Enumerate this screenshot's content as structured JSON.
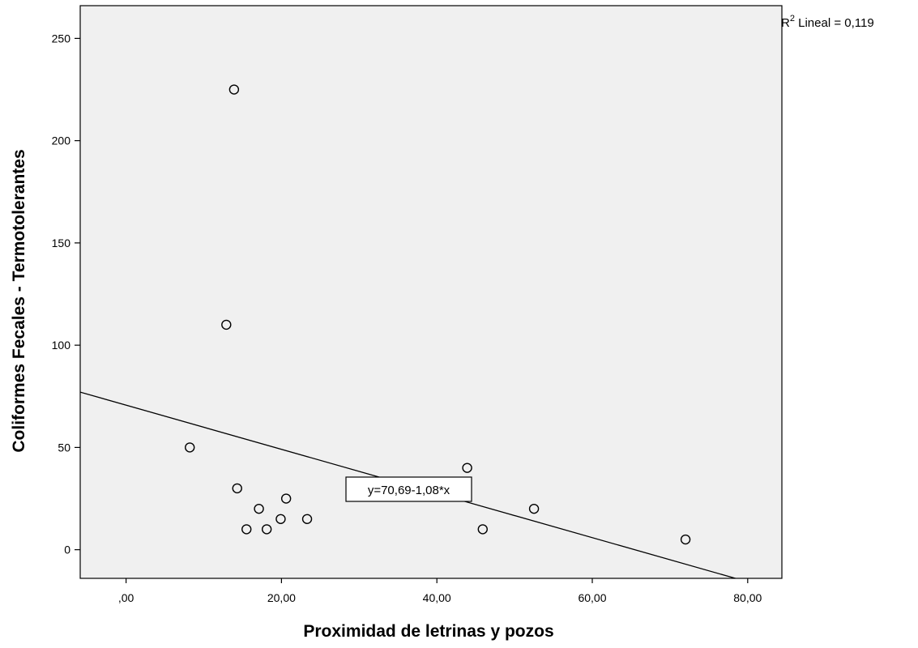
{
  "chart_data": {
    "type": "scatter",
    "title": "",
    "xlabel": "Proximidad de letrinas y pozos",
    "ylabel": "Coliformes Fecales - Termotolerantes",
    "xlim": [
      -5.9,
      84.4
    ],
    "ylim": [
      -14,
      266
    ],
    "x_ticks": [
      0,
      20,
      40,
      60,
      80
    ],
    "x_tick_labels": [
      ",00",
      "20,00",
      "40,00",
      "60,00",
      "80,00"
    ],
    "y_ticks": [
      0,
      50,
      100,
      150,
      200,
      250
    ],
    "y_tick_labels": [
      "0",
      "50",
      "100",
      "150",
      "200",
      "250"
    ],
    "grid": false,
    "points": [
      {
        "x": 8.2,
        "y": 50
      },
      {
        "x": 12.9,
        "y": 110
      },
      {
        "x": 13.9,
        "y": 225
      },
      {
        "x": 14.3,
        "y": 30
      },
      {
        "x": 15.5,
        "y": 10
      },
      {
        "x": 17.1,
        "y": 20
      },
      {
        "x": 18.1,
        "y": 10
      },
      {
        "x": 19.9,
        "y": 15
      },
      {
        "x": 20.6,
        "y": 25
      },
      {
        "x": 23.3,
        "y": 15
      },
      {
        "x": 43.9,
        "y": 40
      },
      {
        "x": 45.9,
        "y": 10
      },
      {
        "x": 52.5,
        "y": 20
      },
      {
        "x": 72.0,
        "y": 5
      }
    ],
    "fit_line": {
      "intercept": 70.69,
      "slope": -1.08,
      "equation_label": "y=70,69-1,08*x"
    },
    "r2_label_prefix": "R",
    "r2_label_superscript": "2",
    "r2_label_suffix": " Lineal = 0,119"
  }
}
